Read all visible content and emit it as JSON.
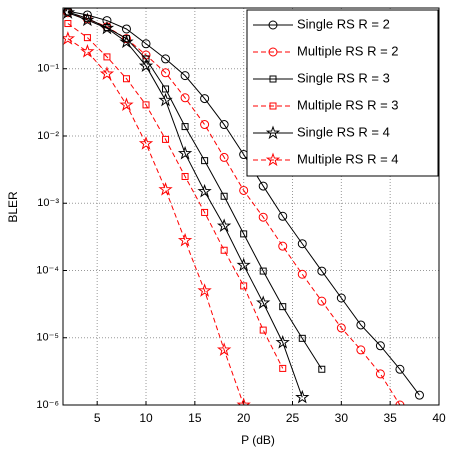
{
  "chart_data": {
    "type": "line",
    "xlabel": "P (dB)",
    "ylabel": "BLER",
    "log_y": true,
    "grid": true,
    "xlim": [
      1.5,
      40
    ],
    "xticks": [
      5,
      10,
      15,
      20,
      25,
      30,
      35,
      40
    ],
    "ylim": [
      1e-06,
      0.8
    ],
    "yticks": [
      {
        "value": 1e-06,
        "label": "10⁻⁶"
      },
      {
        "value": 1e-05,
        "label": "10⁻⁵"
      },
      {
        "value": 0.0001,
        "label": "10⁻⁴"
      },
      {
        "value": 0.001,
        "label": "10⁻³"
      },
      {
        "value": 0.01,
        "label": "10⁻²"
      },
      {
        "value": 0.1,
        "label": "10⁻¹"
      }
    ],
    "legend": "upper right",
    "series": [
      {
        "name": "Single RS R = 2",
        "color": "#000000",
        "dash": false,
        "marker": "circle",
        "x": [
          2,
          4,
          6,
          8,
          10,
          12,
          14,
          16,
          18,
          20,
          22,
          24,
          26,
          28,
          30,
          32,
          34,
          36,
          38
        ],
        "values": [
          0.72,
          0.63,
          0.52,
          0.39,
          0.235,
          0.14,
          0.079,
          0.036,
          0.0148,
          0.0053,
          0.0018,
          0.00064,
          0.00025,
          9.8e-05,
          3.9e-05,
          1.55e-05,
          7.6e-06,
          3.4e-06,
          1.4e-06
        ]
      },
      {
        "name": "Multiple RS R = 2",
        "color": "#ff0000",
        "dash": true,
        "marker": "circle",
        "x": [
          2,
          4,
          6,
          8,
          10,
          12,
          14,
          16,
          18,
          20,
          22,
          24,
          26,
          28,
          30,
          32,
          34,
          36
        ],
        "values": [
          0.68,
          0.55,
          0.42,
          0.28,
          0.16,
          0.087,
          0.037,
          0.0148,
          0.0048,
          0.00155,
          0.00062,
          0.00023,
          8.8e-05,
          3.5e-05,
          1.4e-05,
          6.6e-06,
          2.9e-06,
          1e-06
        ]
      },
      {
        "name": "Single RS R = 3",
        "color": "#000000",
        "dash": false,
        "marker": "square",
        "x": [
          2,
          4,
          6,
          8,
          10,
          12,
          14,
          16,
          18,
          20,
          22,
          24,
          26,
          28
        ],
        "values": [
          0.7,
          0.56,
          0.41,
          0.28,
          0.14,
          0.05,
          0.0138,
          0.0043,
          0.00127,
          0.00035,
          9.8e-05,
          2.9e-05,
          9.8e-06,
          3.4e-06
        ]
      },
      {
        "name": "Multiple RS R = 3",
        "color": "#ff0000",
        "dash": true,
        "marker": "square",
        "x": [
          2,
          4,
          6,
          8,
          10,
          12,
          14,
          16,
          18,
          20,
          22,
          24
        ],
        "values": [
          0.47,
          0.29,
          0.15,
          0.071,
          0.029,
          0.0089,
          0.0025,
          0.00073,
          0.0002,
          5.9e-05,
          1.3e-05,
          3.5e-06
        ]
      },
      {
        "name": "Single RS R = 4",
        "color": "#000000",
        "dash": false,
        "marker": "star",
        "x": [
          2,
          4,
          6,
          8,
          10,
          12,
          14,
          16,
          18,
          20,
          22,
          24,
          26
        ],
        "values": [
          0.68,
          0.53,
          0.4,
          0.25,
          0.11,
          0.034,
          0.0055,
          0.0015,
          0.00046,
          0.00012,
          3.3e-05,
          8.5e-06,
          1.3e-06
        ]
      },
      {
        "name": "Multiple RS R = 4",
        "color": "#ff0000",
        "dash": true,
        "marker": "star",
        "x": [
          2,
          4,
          6,
          8,
          10,
          12,
          14,
          16,
          18,
          20
        ],
        "values": [
          0.28,
          0.18,
          0.084,
          0.029,
          0.0077,
          0.0016,
          0.00028,
          5e-05,
          6.6e-06,
          1e-06
        ]
      }
    ]
  }
}
